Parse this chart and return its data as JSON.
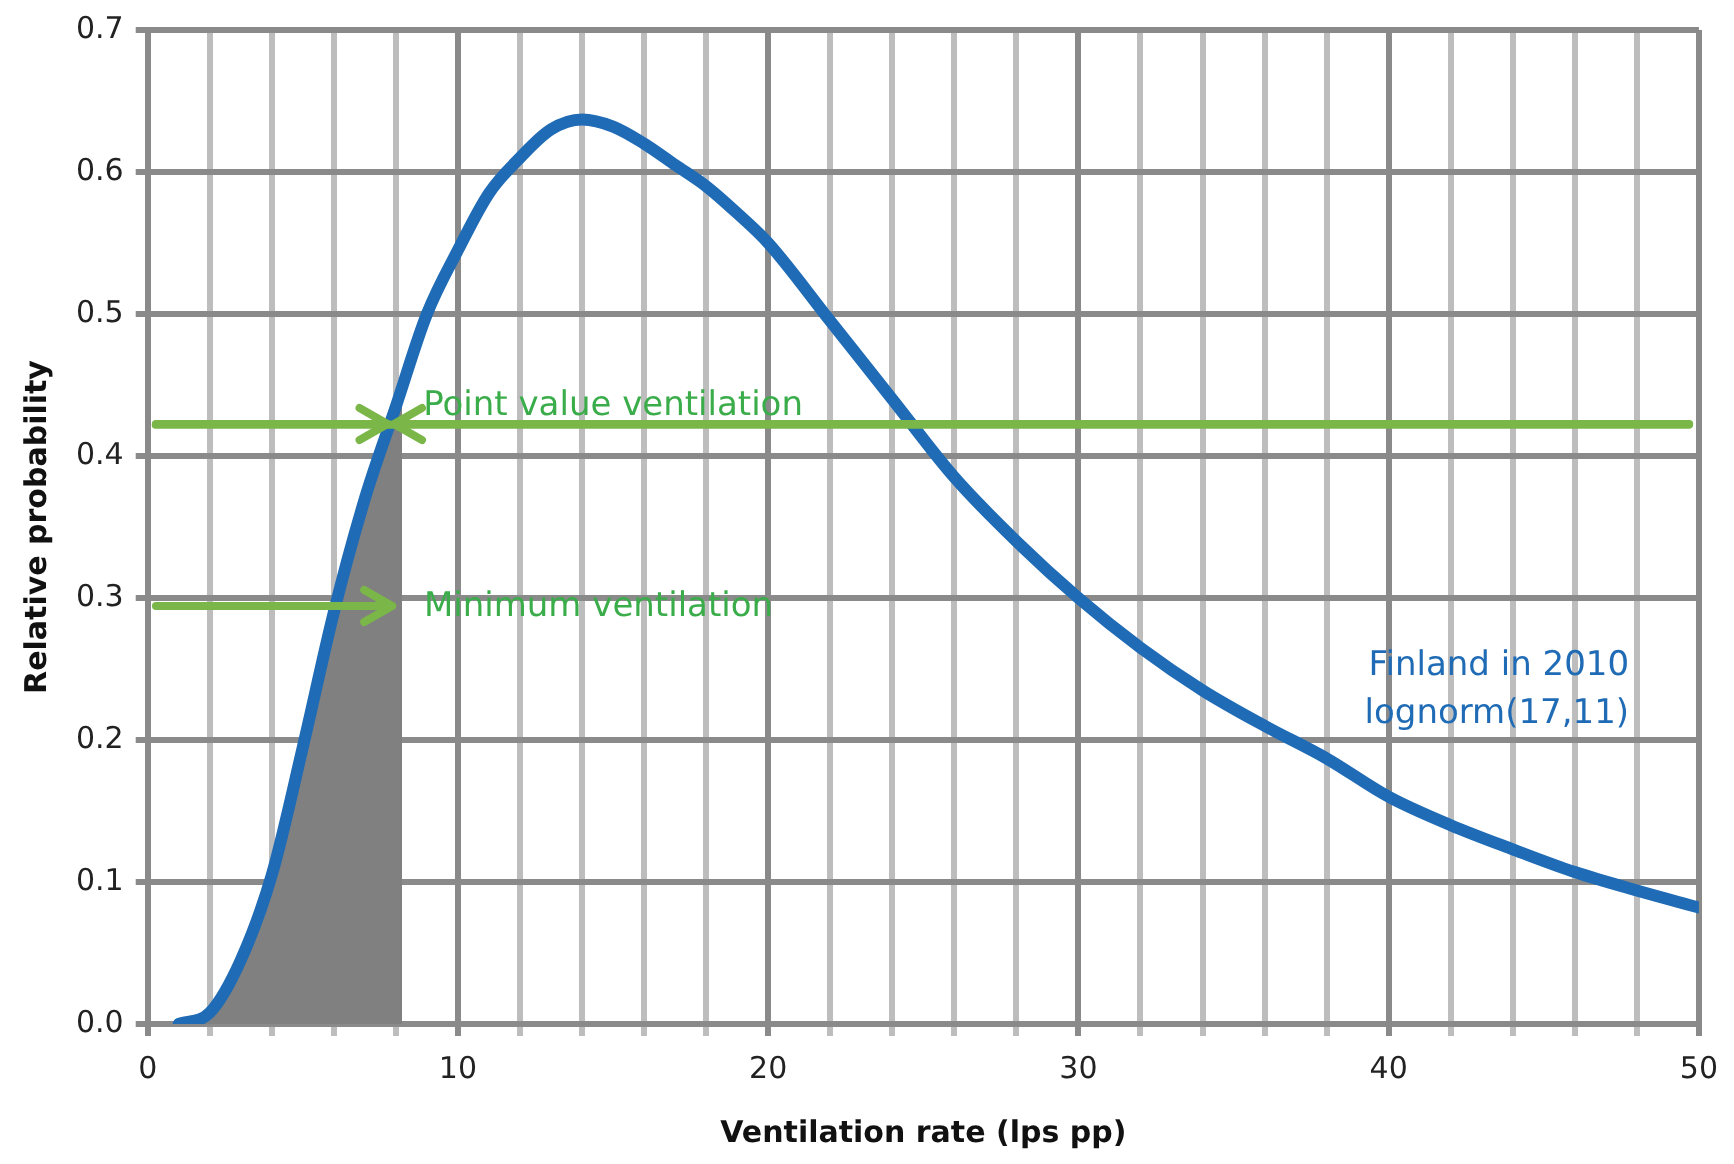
{
  "chart_data": {
    "type": "line",
    "xlabel": "Ventilation rate (lps pp)",
    "ylabel": "Relative probability",
    "x": [
      1,
      2,
      3,
      4,
      5,
      6,
      7,
      8,
      9,
      10,
      11,
      12,
      13,
      14,
      15,
      16,
      17,
      18,
      19,
      20,
      22,
      24,
      26,
      28,
      30,
      32,
      34,
      36,
      38,
      40,
      42,
      44,
      46,
      48,
      50
    ],
    "series": [
      {
        "name": "Finland in 2010",
        "color": "#1f6bb5",
        "values": [
          0,
          0.008,
          0.045,
          0.105,
          0.195,
          0.29,
          0.37,
          0.435,
          0.5,
          0.545,
          0.585,
          0.61,
          0.63,
          0.637,
          0.632,
          0.62,
          0.605,
          0.59,
          0.571,
          0.55,
          0.495,
          0.44,
          0.385,
          0.34,
          0.3,
          0.265,
          0.235,
          0.21,
          0.187,
          0.16,
          0.14,
          0.123,
          0.107,
          0.094,
          0.082
        ]
      },
      {
        "type": "area",
        "color": "#808080",
        "x": [
          1,
          2,
          3,
          4,
          5,
          6,
          7,
          8,
          8.2
        ],
        "values": [
          0,
          0.008,
          0.045,
          0.105,
          0.195,
          0.29,
          0.37,
          0.435,
          0.45
        ]
      }
    ],
    "xlim": [
      0,
      50
    ],
    "xticks": [
      0,
      {
        "value": 2,
        "label": null
      },
      {
        "value": 4,
        "label": null
      },
      {
        "value": 6,
        "label": null
      },
      {
        "value": 8,
        "label": null
      },
      10,
      {
        "value": 12,
        "label": null
      },
      {
        "value": 14,
        "label": null
      },
      {
        "value": 16,
        "label": null
      },
      {
        "value": 18,
        "label": null
      },
      20,
      {
        "value": 22,
        "label": null
      },
      {
        "value": 24,
        "label": null
      },
      {
        "value": 26,
        "label": null
      },
      {
        "value": 28,
        "label": null
      },
      30,
      {
        "value": 32,
        "label": null
      },
      {
        "value": 34,
        "label": null
      },
      {
        "value": 36,
        "label": null
      },
      {
        "value": 38,
        "label": null
      },
      40,
      {
        "value": 42,
        "label": null
      },
      {
        "value": 44,
        "label": null
      },
      {
        "value": 46,
        "label": null
      },
      {
        "value": 48,
        "label": null
      },
      50
    ],
    "ylim": [
      0,
      0.7
    ],
    "yticks": [
      {
        "value": 0,
        "label": "0.0"
      },
      0.1,
      0.2,
      0.3,
      0.4,
      0.5,
      0.6,
      0.7
    ],
    "grid": true,
    "marker": "none",
    "ref_lines": [
      {
        "axis": "y",
        "value": 0.422,
        "color": "#7ab648"
      }
    ],
    "annotations": [
      {
        "text": "Point value ventilation",
        "x": 7.85,
        "y": 0.422
      },
      {
        "text": "Minimum ventilation",
        "x": 8,
        "y": 0.295
      },
      "lognorm(17,11)"
    ]
  }
}
